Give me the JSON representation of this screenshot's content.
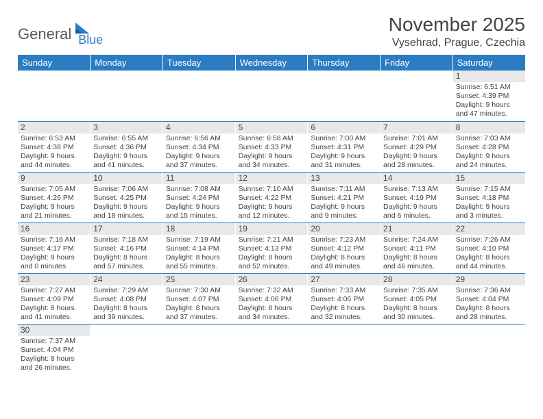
{
  "logo": {
    "text1": "General",
    "text2": "Blue"
  },
  "title": "November 2025",
  "location": "Vysehrad, Prague, Czechia",
  "header_bg": "#2b7cc2",
  "day_headers": [
    "Sunday",
    "Monday",
    "Tuesday",
    "Wednesday",
    "Thursday",
    "Friday",
    "Saturday"
  ],
  "weeks": [
    [
      null,
      null,
      null,
      null,
      null,
      null,
      {
        "n": "1",
        "sr": "Sunrise: 6:51 AM",
        "ss": "Sunset: 4:39 PM",
        "dl": "Daylight: 9 hours and 47 minutes."
      }
    ],
    [
      {
        "n": "2",
        "sr": "Sunrise: 6:53 AM",
        "ss": "Sunset: 4:38 PM",
        "dl": "Daylight: 9 hours and 44 minutes."
      },
      {
        "n": "3",
        "sr": "Sunrise: 6:55 AM",
        "ss": "Sunset: 4:36 PM",
        "dl": "Daylight: 9 hours and 41 minutes."
      },
      {
        "n": "4",
        "sr": "Sunrise: 6:56 AM",
        "ss": "Sunset: 4:34 PM",
        "dl": "Daylight: 9 hours and 37 minutes."
      },
      {
        "n": "5",
        "sr": "Sunrise: 6:58 AM",
        "ss": "Sunset: 4:33 PM",
        "dl": "Daylight: 9 hours and 34 minutes."
      },
      {
        "n": "6",
        "sr": "Sunrise: 7:00 AM",
        "ss": "Sunset: 4:31 PM",
        "dl": "Daylight: 9 hours and 31 minutes."
      },
      {
        "n": "7",
        "sr": "Sunrise: 7:01 AM",
        "ss": "Sunset: 4:29 PM",
        "dl": "Daylight: 9 hours and 28 minutes."
      },
      {
        "n": "8",
        "sr": "Sunrise: 7:03 AM",
        "ss": "Sunset: 4:28 PM",
        "dl": "Daylight: 9 hours and 24 minutes."
      }
    ],
    [
      {
        "n": "9",
        "sr": "Sunrise: 7:05 AM",
        "ss": "Sunset: 4:26 PM",
        "dl": "Daylight: 9 hours and 21 minutes."
      },
      {
        "n": "10",
        "sr": "Sunrise: 7:06 AM",
        "ss": "Sunset: 4:25 PM",
        "dl": "Daylight: 9 hours and 18 minutes."
      },
      {
        "n": "11",
        "sr": "Sunrise: 7:08 AM",
        "ss": "Sunset: 4:24 PM",
        "dl": "Daylight: 9 hours and 15 minutes."
      },
      {
        "n": "12",
        "sr": "Sunrise: 7:10 AM",
        "ss": "Sunset: 4:22 PM",
        "dl": "Daylight: 9 hours and 12 minutes."
      },
      {
        "n": "13",
        "sr": "Sunrise: 7:11 AM",
        "ss": "Sunset: 4:21 PM",
        "dl": "Daylight: 9 hours and 9 minutes."
      },
      {
        "n": "14",
        "sr": "Sunrise: 7:13 AM",
        "ss": "Sunset: 4:19 PM",
        "dl": "Daylight: 9 hours and 6 minutes."
      },
      {
        "n": "15",
        "sr": "Sunrise: 7:15 AM",
        "ss": "Sunset: 4:18 PM",
        "dl": "Daylight: 9 hours and 3 minutes."
      }
    ],
    [
      {
        "n": "16",
        "sr": "Sunrise: 7:16 AM",
        "ss": "Sunset: 4:17 PM",
        "dl": "Daylight: 9 hours and 0 minutes."
      },
      {
        "n": "17",
        "sr": "Sunrise: 7:18 AM",
        "ss": "Sunset: 4:16 PM",
        "dl": "Daylight: 8 hours and 57 minutes."
      },
      {
        "n": "18",
        "sr": "Sunrise: 7:19 AM",
        "ss": "Sunset: 4:14 PM",
        "dl": "Daylight: 8 hours and 55 minutes."
      },
      {
        "n": "19",
        "sr": "Sunrise: 7:21 AM",
        "ss": "Sunset: 4:13 PM",
        "dl": "Daylight: 8 hours and 52 minutes."
      },
      {
        "n": "20",
        "sr": "Sunrise: 7:23 AM",
        "ss": "Sunset: 4:12 PM",
        "dl": "Daylight: 8 hours and 49 minutes."
      },
      {
        "n": "21",
        "sr": "Sunrise: 7:24 AM",
        "ss": "Sunset: 4:11 PM",
        "dl": "Daylight: 8 hours and 46 minutes."
      },
      {
        "n": "22",
        "sr": "Sunrise: 7:26 AM",
        "ss": "Sunset: 4:10 PM",
        "dl": "Daylight: 8 hours and 44 minutes."
      }
    ],
    [
      {
        "n": "23",
        "sr": "Sunrise: 7:27 AM",
        "ss": "Sunset: 4:09 PM",
        "dl": "Daylight: 8 hours and 41 minutes."
      },
      {
        "n": "24",
        "sr": "Sunrise: 7:29 AM",
        "ss": "Sunset: 4:08 PM",
        "dl": "Daylight: 8 hours and 39 minutes."
      },
      {
        "n": "25",
        "sr": "Sunrise: 7:30 AM",
        "ss": "Sunset: 4:07 PM",
        "dl": "Daylight: 8 hours and 37 minutes."
      },
      {
        "n": "26",
        "sr": "Sunrise: 7:32 AM",
        "ss": "Sunset: 4:06 PM",
        "dl": "Daylight: 8 hours and 34 minutes."
      },
      {
        "n": "27",
        "sr": "Sunrise: 7:33 AM",
        "ss": "Sunset: 4:06 PM",
        "dl": "Daylight: 8 hours and 32 minutes."
      },
      {
        "n": "28",
        "sr": "Sunrise: 7:35 AM",
        "ss": "Sunset: 4:05 PM",
        "dl": "Daylight: 8 hours and 30 minutes."
      },
      {
        "n": "29",
        "sr": "Sunrise: 7:36 AM",
        "ss": "Sunset: 4:04 PM",
        "dl": "Daylight: 8 hours and 28 minutes."
      }
    ],
    [
      {
        "n": "30",
        "sr": "Sunrise: 7:37 AM",
        "ss": "Sunset: 4:04 PM",
        "dl": "Daylight: 8 hours and 26 minutes."
      },
      null,
      null,
      null,
      null,
      null,
      null
    ]
  ]
}
